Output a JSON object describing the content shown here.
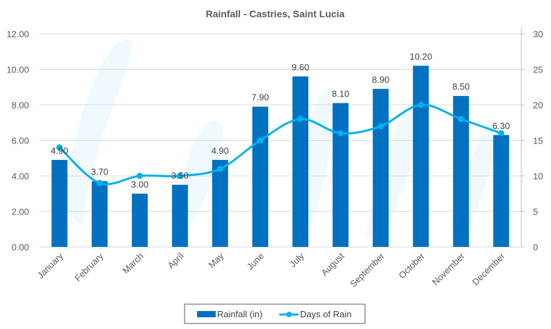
{
  "chart_data": {
    "type": "bar",
    "title": "Rainfall - Castries, Saint Lucia",
    "categories": [
      "January",
      "February",
      "March",
      "April",
      "May",
      "June",
      "July",
      "August",
      "September",
      "October",
      "November",
      "December"
    ],
    "series": [
      {
        "name": "Rainfall (in)",
        "type": "bar",
        "axis": "left",
        "color": "#0070C0",
        "values": [
          4.9,
          3.7,
          3.0,
          3.5,
          4.9,
          7.9,
          9.6,
          8.1,
          8.9,
          10.2,
          8.5,
          6.3
        ],
        "labels": [
          "4.90",
          "3.70",
          "3.00",
          "3.50",
          "4.90",
          "7.90",
          "9.60",
          "8.10",
          "8.90",
          "10.20",
          "8.50",
          "6.30"
        ]
      },
      {
        "name": "Days of Rain",
        "type": "line",
        "axis": "right",
        "color": "#00B0F0",
        "smooth": true,
        "values": [
          14,
          9,
          10,
          10,
          11,
          15,
          18,
          16,
          17,
          20,
          18,
          16
        ]
      }
    ],
    "y_left": {
      "min": 0,
      "max": 12,
      "step": 2,
      "tick_labels": [
        "0.00",
        "2.00",
        "4.00",
        "6.00",
        "8.00",
        "10.00",
        "12.00"
      ]
    },
    "y_right": {
      "min": 0,
      "max": 30,
      "step": 5,
      "tick_labels": [
        "0",
        "5",
        "10",
        "15",
        "20",
        "25",
        "30"
      ]
    },
    "xlabel": "",
    "ylabel": "",
    "grid": true,
    "legend": {
      "position": "bottom",
      "entries": [
        "Rainfall (in)",
        "Days of Rain"
      ]
    }
  }
}
